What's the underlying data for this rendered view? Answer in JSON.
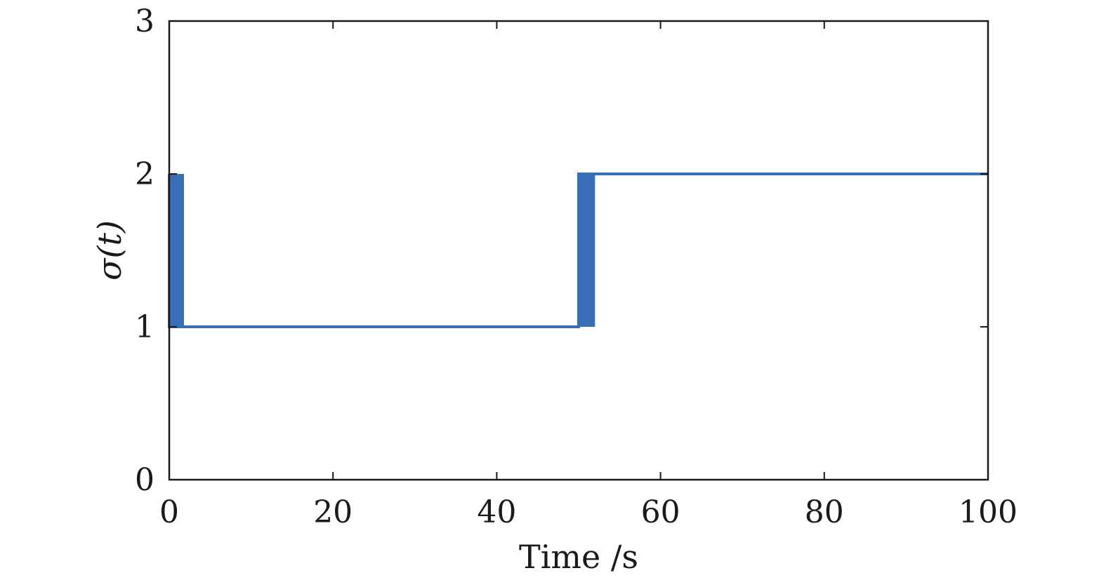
{
  "chart_data": {
    "type": "line",
    "title": "",
    "xlabel": "Time /s",
    "ylabel": "σ(t)",
    "xlim": [
      0,
      100
    ],
    "ylim": [
      0,
      3
    ],
    "xticks": [
      0,
      20,
      40,
      60,
      80,
      100
    ],
    "xtick_labels": [
      "0",
      "20",
      "40",
      "60",
      "80",
      "100"
    ],
    "yticks": [
      0,
      1,
      2,
      3
    ],
    "ytick_labels": [
      "0",
      "1",
      "2",
      "3"
    ],
    "grid": false,
    "series": [
      {
        "color": "#3a6db8",
        "x": [
          0,
          0,
          2,
          2,
          50,
          50,
          52,
          52,
          100
        ],
        "y": [
          2,
          1,
          1,
          1,
          1,
          2,
          2,
          2,
          2
        ]
      }
    ],
    "switching_bands": [
      {
        "x_start": 0,
        "x_end": 1.8,
        "y_low": 1,
        "y_high": 2
      },
      {
        "x_start": 50,
        "x_end": 52,
        "y_low": 1,
        "y_high": 2
      }
    ]
  }
}
